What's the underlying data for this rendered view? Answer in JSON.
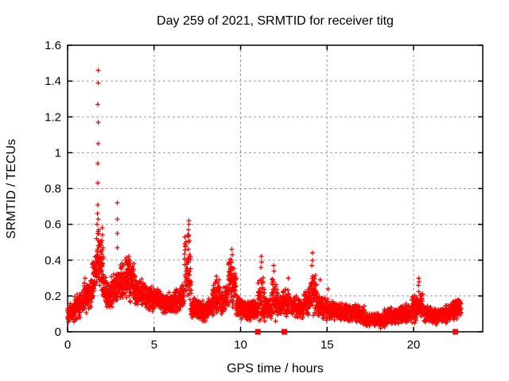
{
  "chart_data": {
    "type": "scatter",
    "title": "Day 259 of 2021, SRMTID for receiver titg",
    "xlabel": "GPS time / hours",
    "ylabel": "SRMTID / TECUs",
    "xlim": [
      0,
      24
    ],
    "ylim": [
      0,
      1.6
    ],
    "xticks": {
      "values": [
        0,
        5,
        10,
        15,
        20
      ],
      "labels": [
        "0",
        "5",
        "10",
        "15",
        "20"
      ]
    },
    "yticks": {
      "values": [
        0,
        0.2,
        0.4,
        0.6,
        0.8,
        1.0,
        1.2,
        1.4,
        1.6
      ],
      "labels": [
        "0",
        "0.2",
        "0.4",
        "0.6",
        "0.8",
        "1",
        "1.2",
        "1.4",
        "1.6"
      ]
    },
    "grid": {
      "style": "dashed",
      "color": "#9e9e9e"
    },
    "legend": "none",
    "frame_color": "#000000",
    "marker": {
      "shape": "plus",
      "color": "#ff0000",
      "size": 7
    },
    "series": [
      {
        "name": "srmtid-points",
        "style": "plus-cross",
        "color": "#ff0000",
        "seed": 42,
        "cloud_segments_format": [
          "x_start_h",
          "x_end_h",
          "n_points",
          "center_y_start",
          "center_y_end",
          "half_spread"
        ],
        "cloud_segments": [
          [
            0.0,
            0.4,
            70,
            0.1,
            0.11,
            0.055
          ],
          [
            0.4,
            0.9,
            90,
            0.13,
            0.16,
            0.07
          ],
          [
            0.9,
            1.4,
            95,
            0.18,
            0.22,
            0.085
          ],
          [
            1.4,
            1.75,
            70,
            0.26,
            0.38,
            0.12
          ],
          [
            1.75,
            2.08,
            65,
            0.4,
            0.32,
            0.16
          ],
          [
            2.08,
            2.5,
            80,
            0.24,
            0.2,
            0.08
          ],
          [
            2.5,
            3.0,
            90,
            0.22,
            0.28,
            0.1
          ],
          [
            3.0,
            3.45,
            85,
            0.28,
            0.3,
            0.11
          ],
          [
            3.45,
            3.9,
            85,
            0.3,
            0.26,
            0.12
          ],
          [
            3.9,
            4.6,
            115,
            0.24,
            0.2,
            0.08
          ],
          [
            4.6,
            5.4,
            130,
            0.19,
            0.17,
            0.065
          ],
          [
            5.4,
            6.2,
            130,
            0.16,
            0.16,
            0.06
          ],
          [
            6.2,
            6.75,
            90,
            0.17,
            0.2,
            0.07
          ],
          [
            6.75,
            7.15,
            60,
            0.36,
            0.3,
            0.22
          ],
          [
            7.15,
            7.9,
            120,
            0.14,
            0.11,
            0.06
          ],
          [
            7.9,
            8.35,
            70,
            0.11,
            0.14,
            0.055
          ],
          [
            8.35,
            8.85,
            85,
            0.18,
            0.2,
            0.09
          ],
          [
            8.85,
            9.3,
            70,
            0.16,
            0.2,
            0.07
          ],
          [
            9.3,
            9.75,
            75,
            0.28,
            0.24,
            0.13
          ],
          [
            9.75,
            10.5,
            120,
            0.14,
            0.12,
            0.06
          ],
          [
            10.5,
            11.0,
            80,
            0.12,
            0.14,
            0.06
          ],
          [
            11.0,
            11.45,
            70,
            0.2,
            0.16,
            0.13
          ],
          [
            11.45,
            11.8,
            60,
            0.14,
            0.13,
            0.06
          ],
          [
            11.8,
            12.15,
            55,
            0.2,
            0.16,
            0.11
          ],
          [
            12.15,
            12.9,
            115,
            0.15,
            0.16,
            0.075
          ],
          [
            12.9,
            13.6,
            105,
            0.15,
            0.13,
            0.06
          ],
          [
            13.6,
            14.05,
            70,
            0.15,
            0.18,
            0.08
          ],
          [
            14.05,
            14.45,
            60,
            0.25,
            0.18,
            0.13
          ],
          [
            14.45,
            15.1,
            100,
            0.15,
            0.12,
            0.06
          ],
          [
            15.1,
            15.9,
            125,
            0.12,
            0.11,
            0.055
          ],
          [
            15.9,
            16.6,
            110,
            0.1,
            0.11,
            0.05
          ],
          [
            16.6,
            17.2,
            95,
            0.11,
            0.09,
            0.05
          ],
          [
            17.2,
            18.3,
            165,
            0.07,
            0.06,
            0.04
          ],
          [
            18.3,
            19.2,
            140,
            0.08,
            0.09,
            0.05
          ],
          [
            19.2,
            19.9,
            110,
            0.1,
            0.1,
            0.055
          ],
          [
            19.9,
            20.55,
            105,
            0.13,
            0.14,
            0.085
          ],
          [
            20.55,
            21.4,
            130,
            0.1,
            0.09,
            0.05
          ],
          [
            21.4,
            22.1,
            110,
            0.09,
            0.1,
            0.05
          ],
          [
            22.1,
            22.75,
            100,
            0.11,
            0.13,
            0.055
          ]
        ],
        "peak_points": [
          [
            1.76,
            1.46
          ],
          [
            1.76,
            1.39
          ],
          [
            1.75,
            1.27
          ],
          [
            1.76,
            1.17
          ],
          [
            1.76,
            1.05
          ],
          [
            1.75,
            0.94
          ],
          [
            1.74,
            0.83
          ],
          [
            1.75,
            0.71
          ],
          [
            1.72,
            0.66
          ],
          [
            1.78,
            0.63
          ],
          [
            1.7,
            0.6
          ],
          [
            1.8,
            0.57
          ],
          [
            1.74,
            0.55
          ],
          [
            1.68,
            0.52
          ],
          [
            1.83,
            0.5
          ],
          [
            1.77,
            0.48
          ],
          [
            2.0,
            0.58
          ],
          [
            2.02,
            0.54
          ],
          [
            1.97,
            0.51
          ],
          [
            2.05,
            0.47
          ],
          [
            2.87,
            0.72
          ],
          [
            2.88,
            0.63
          ],
          [
            2.88,
            0.55
          ],
          [
            2.87,
            0.47
          ],
          [
            3.55,
            0.42
          ],
          [
            3.6,
            0.4
          ],
          [
            3.5,
            0.38
          ],
          [
            7.0,
            0.62
          ],
          [
            7.02,
            0.6
          ],
          [
            6.98,
            0.57
          ],
          [
            7.01,
            0.54
          ],
          [
            7.0,
            0.5
          ],
          [
            6.99,
            0.46
          ],
          [
            7.05,
            0.43
          ],
          [
            8.6,
            0.31
          ],
          [
            8.62,
            0.29
          ],
          [
            9.5,
            0.46
          ],
          [
            9.52,
            0.43
          ],
          [
            9.48,
            0.4
          ],
          [
            11.2,
            0.42
          ],
          [
            11.22,
            0.39
          ],
          [
            11.18,
            0.36
          ],
          [
            11.9,
            0.37
          ],
          [
            11.92,
            0.34
          ],
          [
            12.75,
            0.3
          ],
          [
            14.15,
            0.44
          ],
          [
            14.17,
            0.4
          ],
          [
            14.12,
            0.37
          ],
          [
            14.6,
            0.29
          ],
          [
            15.05,
            0.24
          ],
          [
            20.3,
            0.3
          ],
          [
            20.32,
            0.28
          ],
          [
            20.28,
            0.26
          ],
          [
            1.0,
            0.3
          ],
          [
            0.97,
            0.27
          ],
          [
            22.55,
            0.17
          ],
          [
            22.6,
            0.16
          ]
        ]
      },
      {
        "name": "flag-squares",
        "style": "filled-square",
        "color": "#ff0000",
        "points": [
          [
            11.0,
            0
          ],
          [
            12.53,
            0
          ],
          [
            22.42,
            0
          ]
        ]
      }
    ]
  }
}
